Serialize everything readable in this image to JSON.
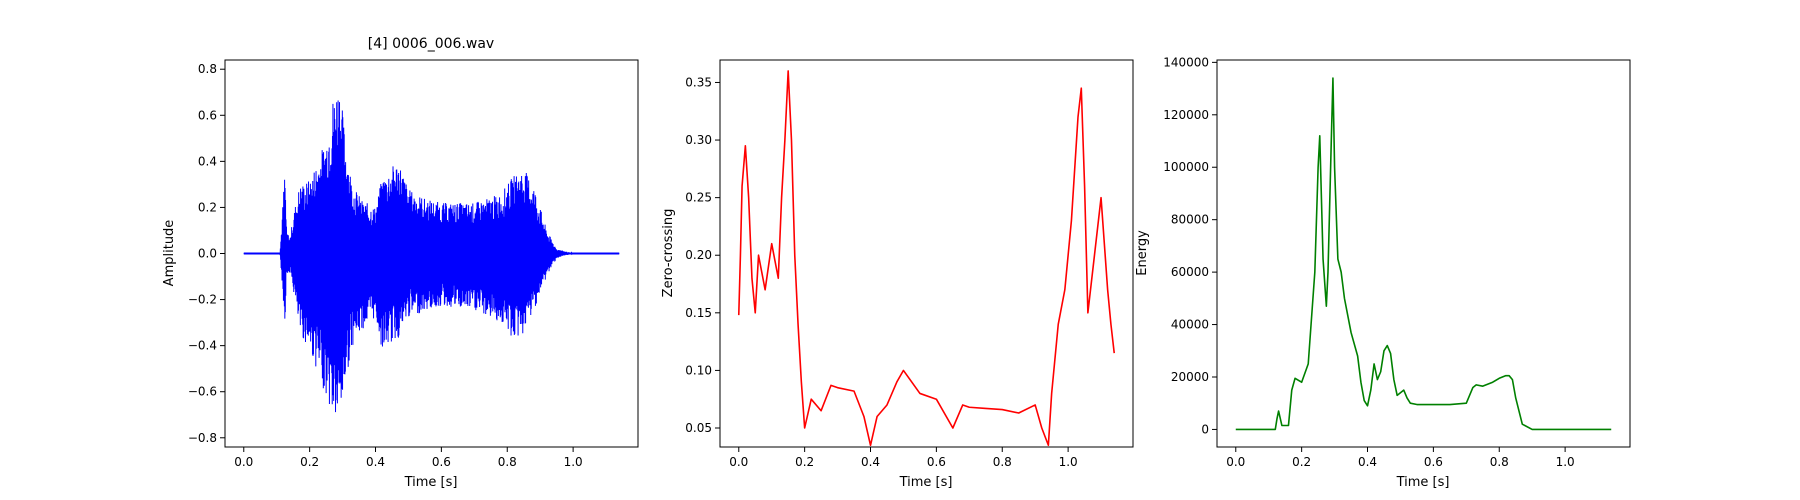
{
  "chart_data": [
    {
      "type": "line",
      "title": "[4] 0006_006.wav",
      "xlabel": "Time [s]",
      "ylabel": "Amplitude",
      "xlim": [
        -0.057,
        1.197
      ],
      "ylim": [
        -0.84,
        0.84
      ],
      "xticks": [
        0.0,
        0.2,
        0.4,
        0.6,
        0.8,
        1.0
      ],
      "xtick_labels": [
        "0.0",
        "0.2",
        "0.4",
        "0.6",
        "0.8",
        "1.0"
      ],
      "yticks": [
        -0.8,
        -0.6,
        -0.4,
        -0.2,
        0.0,
        0.2,
        0.4,
        0.6,
        0.8
      ],
      "ytick_labels": [
        "−0.8",
        "−0.6",
        "−0.4",
        "−0.2",
        "0.0",
        "0.2",
        "0.4",
        "0.6",
        "0.8"
      ],
      "grid": false,
      "series": [
        {
          "color": "#0000ff",
          "style": "waveform",
          "envelope_x": [
            0.0,
            0.11,
            0.125,
            0.13,
            0.14,
            0.155,
            0.17,
            0.2,
            0.25,
            0.27,
            0.29,
            0.31,
            0.33,
            0.36,
            0.4,
            0.42,
            0.47,
            0.5,
            0.55,
            0.6,
            0.7,
            0.78,
            0.82,
            0.85,
            0.88,
            0.92,
            0.95,
            1.0,
            1.14
          ],
          "envelope_upper": [
            0.0,
            0.0,
            0.38,
            0.1,
            0.07,
            0.2,
            0.3,
            0.32,
            0.5,
            0.68,
            0.76,
            0.48,
            0.3,
            0.23,
            0.2,
            0.33,
            0.41,
            0.28,
            0.24,
            0.22,
            0.22,
            0.26,
            0.34,
            0.37,
            0.3,
            0.1,
            0.02,
            0.0,
            0.0
          ],
          "envelope_lower": [
            0.0,
            0.0,
            -0.3,
            -0.1,
            -0.08,
            -0.2,
            -0.35,
            -0.42,
            -0.62,
            -0.72,
            -0.75,
            -0.55,
            -0.4,
            -0.33,
            -0.28,
            -0.42,
            -0.37,
            -0.28,
            -0.25,
            -0.23,
            -0.25,
            -0.3,
            -0.38,
            -0.35,
            -0.25,
            -0.1,
            -0.02,
            0.0,
            0.0
          ]
        }
      ]
    },
    {
      "type": "line",
      "xlabel": "Time [s]",
      "ylabel": "Zero-crossing",
      "xlim": [
        -0.057,
        1.197
      ],
      "ylim": [
        0.0335,
        0.3695
      ],
      "xticks": [
        0.0,
        0.2,
        0.4,
        0.6,
        0.8,
        1.0
      ],
      "xtick_labels": [
        "0.0",
        "0.2",
        "0.4",
        "0.6",
        "0.8",
        "1.0"
      ],
      "yticks": [
        0.05,
        0.1,
        0.15,
        0.2,
        0.25,
        0.3,
        0.35
      ],
      "ytick_labels": [
        "0.05",
        "0.10",
        "0.15",
        "0.20",
        "0.25",
        "0.30",
        "0.35"
      ],
      "grid": false,
      "series": [
        {
          "color": "#ff0000",
          "x": [
            0.0,
            0.005,
            0.01,
            0.02,
            0.03,
            0.04,
            0.05,
            0.06,
            0.08,
            0.1,
            0.12,
            0.13,
            0.14,
            0.15,
            0.16,
            0.17,
            0.18,
            0.19,
            0.2,
            0.22,
            0.25,
            0.28,
            0.3,
            0.35,
            0.38,
            0.4,
            0.42,
            0.45,
            0.48,
            0.5,
            0.55,
            0.6,
            0.65,
            0.68,
            0.7,
            0.75,
            0.8,
            0.85,
            0.9,
            0.92,
            0.94,
            0.95,
            0.97,
            0.99,
            1.01,
            1.03,
            1.04,
            1.05,
            1.06,
            1.08,
            1.1,
            1.12,
            1.13,
            1.14
          ],
          "y": [
            0.148,
            0.2,
            0.26,
            0.295,
            0.25,
            0.18,
            0.15,
            0.2,
            0.17,
            0.21,
            0.18,
            0.25,
            0.3,
            0.36,
            0.3,
            0.2,
            0.14,
            0.09,
            0.05,
            0.075,
            0.065,
            0.087,
            0.085,
            0.082,
            0.06,
            0.035,
            0.06,
            0.07,
            0.09,
            0.1,
            0.08,
            0.075,
            0.05,
            0.07,
            0.068,
            0.067,
            0.066,
            0.063,
            0.07,
            0.05,
            0.035,
            0.08,
            0.14,
            0.17,
            0.23,
            0.32,
            0.345,
            0.26,
            0.15,
            0.2,
            0.25,
            0.17,
            0.14,
            0.115
          ]
        }
      ]
    },
    {
      "type": "line",
      "xlabel": "Time [s]",
      "ylabel": "Energy",
      "xlim": [
        -0.057,
        1.197
      ],
      "ylim": [
        -6700,
        140900
      ],
      "xticks": [
        0.0,
        0.2,
        0.4,
        0.6,
        0.8,
        1.0
      ],
      "xtick_labels": [
        "0.0",
        "0.2",
        "0.4",
        "0.6",
        "0.8",
        "1.0"
      ],
      "yticks": [
        0,
        20000,
        40000,
        60000,
        80000,
        100000,
        120000,
        140000
      ],
      "ytick_labels": [
        "0",
        "20000",
        "40000",
        "60000",
        "80000",
        "100000",
        "120000",
        "140000"
      ],
      "grid": false,
      "series": [
        {
          "color": "#008000",
          "x": [
            0.0,
            0.12,
            0.125,
            0.13,
            0.14,
            0.16,
            0.17,
            0.18,
            0.2,
            0.22,
            0.24,
            0.25,
            0.255,
            0.265,
            0.275,
            0.28,
            0.29,
            0.295,
            0.3,
            0.31,
            0.32,
            0.33,
            0.35,
            0.37,
            0.38,
            0.39,
            0.4,
            0.41,
            0.42,
            0.43,
            0.44,
            0.45,
            0.46,
            0.47,
            0.48,
            0.49,
            0.5,
            0.51,
            0.52,
            0.53,
            0.55,
            0.6,
            0.65,
            0.7,
            0.72,
            0.73,
            0.75,
            0.78,
            0.8,
            0.82,
            0.83,
            0.84,
            0.85,
            0.87,
            0.9,
            0.95,
            1.0,
            1.14
          ],
          "y": [
            0,
            0,
            4000,
            7000,
            1500,
            1500,
            15000,
            19500,
            18000,
            25000,
            60000,
            100000,
            112000,
            65000,
            47000,
            60000,
            110000,
            134000,
            100000,
            65000,
            60000,
            50000,
            37000,
            28000,
            18000,
            11000,
            9000,
            15000,
            25000,
            19000,
            22000,
            30000,
            32000,
            29000,
            19000,
            13000,
            14000,
            15000,
            12000,
            10000,
            9500,
            9500,
            9500,
            10000,
            16000,
            17000,
            16500,
            18000,
            19500,
            20500,
            20500,
            19000,
            12000,
            2000,
            0,
            0,
            0,
            0
          ]
        }
      ]
    }
  ]
}
